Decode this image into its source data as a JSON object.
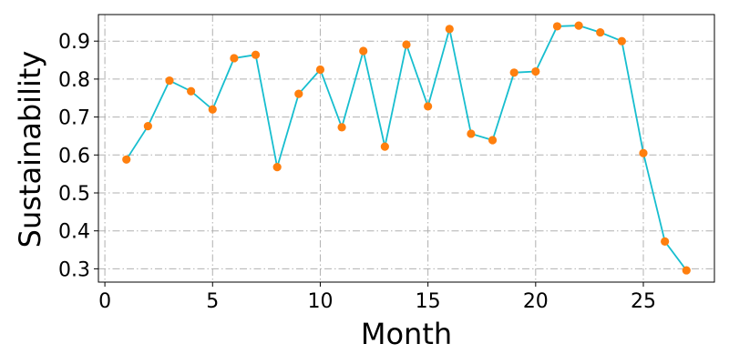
{
  "chart_data": {
    "type": "line",
    "title": "",
    "xlabel": "Month",
    "ylabel": "Sustainability",
    "xlim": [
      -0.3,
      28.3
    ],
    "ylim": [
      0.265,
      0.97
    ],
    "xticks": [
      0,
      5,
      10,
      15,
      20,
      25
    ],
    "yticks": [
      0.3,
      0.4,
      0.5,
      0.6,
      0.7,
      0.8,
      0.9
    ],
    "xtick_labels": [
      "0",
      "5",
      "10",
      "15",
      "20",
      "25"
    ],
    "ytick_labels": [
      "0.3",
      "0.4",
      "0.5",
      "0.6",
      "0.7",
      "0.8",
      "0.9"
    ],
    "grid": true,
    "line_color": "#17becf",
    "marker_color": "#ff7f0e",
    "series": [
      {
        "x": [
          1,
          2,
          3,
          4,
          5,
          6,
          7,
          8,
          9,
          10,
          11,
          12,
          13,
          14,
          15,
          16,
          17,
          18,
          19,
          20,
          21,
          22,
          23,
          24,
          25,
          26,
          27
        ],
        "values": [
          0.588,
          0.676,
          0.796,
          0.768,
          0.72,
          0.855,
          0.864,
          0.568,
          0.761,
          0.825,
          0.673,
          0.874,
          0.622,
          0.891,
          0.728,
          0.932,
          0.656,
          0.639,
          0.817,
          0.82,
          0.939,
          0.941,
          0.923,
          0.9,
          0.605,
          0.372,
          0.296
        ]
      }
    ]
  }
}
